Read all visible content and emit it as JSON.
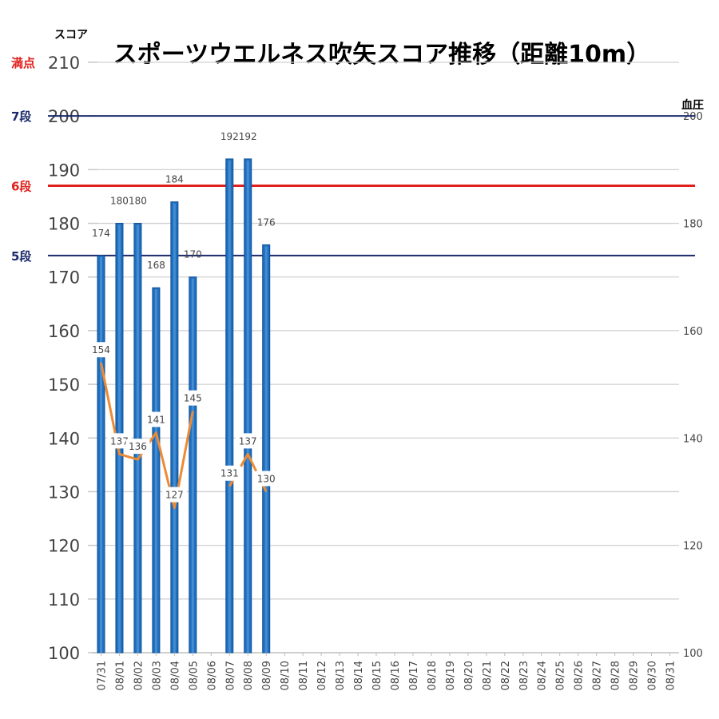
{
  "chart_data": {
    "type": "bar",
    "title": "スポーツウエルネス吹矢スコア推移（距離10m）",
    "ylabel": "スコア",
    "y2label": "血圧",
    "ylim": [
      100,
      210
    ],
    "y2lim": [
      100,
      210
    ],
    "yticks": [
      "100",
      "110",
      "120",
      "130",
      "140",
      "150",
      "160",
      "170",
      "180",
      "190",
      "200",
      "210"
    ],
    "y2ticks": [
      "100",
      "120",
      "140",
      "160",
      "180",
      "200"
    ],
    "grid": true,
    "categories": [
      "07/31",
      "08/01",
      "08/02",
      "08/03",
      "08/04",
      "08/05",
      "08/06",
      "08/07",
      "08/08",
      "08/09",
      "08/10",
      "08/11",
      "08/12",
      "08/13",
      "08/14",
      "08/15",
      "08/16",
      "08/17",
      "08/18",
      "08/19",
      "08/20",
      "08/21",
      "08/22",
      "08/23",
      "08/24",
      "08/25",
      "08/26",
      "08/27",
      "08/28",
      "08/29",
      "08/30",
      "08/31"
    ],
    "series": [
      {
        "name": "",
        "type": "bar",
        "axis": "left",
        "values": [
          174,
          180,
          180,
          168,
          184,
          170,
          null,
          192,
          192,
          176,
          null,
          null,
          null,
          null,
          null,
          null,
          null,
          null,
          null,
          null,
          null,
          null,
          null,
          null,
          null,
          null,
          null,
          null,
          null,
          null,
          null,
          null
        ],
        "labels": [
          "174",
          "180",
          "180",
          "168",
          "184",
          "170",
          "",
          "192",
          "192",
          "176",
          "",
          "",
          "",
          "",
          "",
          "",
          "",
          "",
          "",
          "",
          "",
          "",
          "",
          "",
          "",
          "",
          "",
          "",
          "",
          "",
          "",
          ""
        ]
      },
      {
        "name": "",
        "type": "line",
        "axis": "right",
        "values": [
          154,
          137,
          136,
          141,
          127,
          145,
          null,
          131,
          137,
          130,
          null,
          null,
          null,
          null,
          null,
          null,
          null,
          null,
          null,
          null,
          null,
          null,
          null,
          null,
          null,
          null,
          null,
          null,
          null,
          null,
          null,
          null
        ],
        "labels": [
          "154",
          "137",
          "136",
          "141",
          "127",
          "145",
          "",
          "131",
          "137",
          "130",
          "",
          "",
          "",
          "",
          "",
          "",
          "",
          "",
          "",
          "",
          "",
          "",
          "",
          "",
          "",
          "",
          "",
          "",
          "",
          "",
          "",
          ""
        ]
      }
    ],
    "reference_lines": [
      {
        "label": "満点",
        "value": 210,
        "color": "#e0201c",
        "drawn": false
      },
      {
        "label": "7段",
        "value": 200,
        "color": "#1b2a6b",
        "drawn": true
      },
      {
        "label": "6段",
        "value": 187,
        "color": "#e0201c",
        "drawn": true
      },
      {
        "label": "5段",
        "value": 174,
        "color": "#1b2a6b",
        "drawn": true
      }
    ],
    "colors": {
      "bar": "#1f6fbf",
      "bar_edge": "#0f4f96",
      "line": "#ed8b35",
      "grid": "#d0d0d0"
    }
  }
}
